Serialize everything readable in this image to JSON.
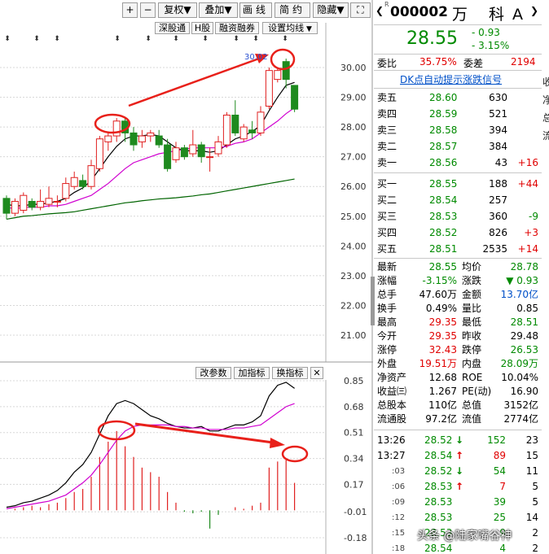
{
  "toolbar": {
    "add": "+",
    "subtract": "−",
    "restore_rights": "复权",
    "overlay": "叠加",
    "draw_line": "画线",
    "simple": "简约",
    "hide": "隐藏",
    "fullscreen": "⛶"
  },
  "chart_buttons": {
    "sz_link": "深股通",
    "h_share": "H股",
    "margin": "融资融券",
    "ma_settings": "设置均线",
    "change_params": "改参数",
    "add_indicator": "加指标",
    "switch_indicator": "换指标",
    "close": "✕"
  },
  "main_chart": {
    "peak_label": "30.02",
    "y_ticks": [
      "30.00",
      "29.00",
      "28.00",
      "27.00",
      "26.00",
      "25.00",
      "24.00",
      "23.00",
      "22.00",
      "21.00"
    ]
  },
  "indicator_chart": {
    "y_ticks": [
      "0.85",
      "0.68",
      "0.51",
      "0.34",
      "0.17",
      "-0.01",
      "-0.18"
    ]
  },
  "quote": {
    "code": "000002",
    "name": "万 科A",
    "r_mark": "R",
    "price": "28.55",
    "change": "- 0.93",
    "change_pct": "- 3.15%",
    "ratio_label": "委比",
    "ratio_value": "35.75%",
    "diff_label": "委差",
    "diff_value": "2194",
    "signal_link": "DK点自动提示涨跌信号"
  },
  "sell_orders": [
    {
      "label": "卖五",
      "price": "28.60",
      "volume": "630",
      "delta": ""
    },
    {
      "label": "卖四",
      "price": "28.59",
      "volume": "521",
      "delta": ""
    },
    {
      "label": "卖三",
      "price": "28.58",
      "volume": "394",
      "delta": ""
    },
    {
      "label": "卖二",
      "price": "28.57",
      "volume": "384",
      "delta": ""
    },
    {
      "label": "卖一",
      "price": "28.56",
      "volume": "43",
      "delta": "+16"
    }
  ],
  "buy_orders": [
    {
      "label": "买一",
      "price": "28.55",
      "volume": "188",
      "delta": "+44"
    },
    {
      "label": "买二",
      "price": "28.54",
      "volume": "257",
      "delta": ""
    },
    {
      "label": "买三",
      "price": "28.53",
      "volume": "360",
      "delta": "-9"
    },
    {
      "label": "买四",
      "price": "28.52",
      "volume": "826",
      "delta": "+3"
    },
    {
      "label": "买五",
      "price": "28.51",
      "volume": "2535",
      "delta": "+14"
    }
  ],
  "stats": [
    {
      "l1": "最新",
      "v1": "28.55",
      "l2": "均价",
      "v2": "28.78"
    },
    {
      "l1": "涨幅",
      "v1": "-3.15%",
      "l2": "涨跌",
      "v2": "▼ 0.93"
    },
    {
      "l1": "总手",
      "v1": "47.60万",
      "l2": "金额",
      "v2": "13.70亿"
    },
    {
      "l1": "换手",
      "v1": "0.49%",
      "l2": "量比",
      "v2": "0.85"
    },
    {
      "l1": "最高",
      "v1": "29.35",
      "l2": "最低",
      "v2": "28.51"
    },
    {
      "l1": "今开",
      "v1": "29.35",
      "l2": "昨收",
      "v2": "29.48"
    },
    {
      "l1": "涨停",
      "v1": "32.43",
      "l2": "跌停",
      "v2": "26.53"
    },
    {
      "l1": "外盘",
      "v1": "19.51万",
      "l2": "内盘",
      "v2": "28.09万"
    },
    {
      "l1": "净资产",
      "v1": "12.68",
      "l2": "ROE",
      "v2": "10.04%"
    },
    {
      "l1": "收益㈢",
      "v1": "1.267",
      "l2": "PE(动)",
      "v2": "16.90"
    },
    {
      "l1": "总股本",
      "v1": "110亿",
      "l2": "总值",
      "v2": "3152亿"
    },
    {
      "l1": "流通股",
      "v1": "97.2亿",
      "l2": "流值",
      "v2": "2774亿"
    }
  ],
  "ticks": [
    {
      "time": "13:26",
      "price": "28.52",
      "arrow": "↓",
      "vol": "152",
      "count": "23"
    },
    {
      "time": "13:27",
      "price": "28.54",
      "arrow": "↑",
      "vol": "89",
      "count": "15"
    },
    {
      "time": ":03",
      "price": "28.52",
      "arrow": "↓",
      "vol": "54",
      "count": "11"
    },
    {
      "time": ":06",
      "price": "28.53",
      "arrow": "↑",
      "vol": "7",
      "count": "5"
    },
    {
      "time": ":09",
      "price": "28.53",
      "arrow": "",
      "vol": "39",
      "count": "5"
    },
    {
      "time": ":12",
      "price": "28.53",
      "arrow": "",
      "vol": "25",
      "count": "14"
    },
    {
      "time": ":15",
      "price": "28.53",
      "arrow": "",
      "vol": "9",
      "count": "2"
    },
    {
      "time": ":18",
      "price": "28.54",
      "arrow": "",
      "vol": "4",
      "count": "2"
    }
  ],
  "edge_chars": [
    "收",
    "净",
    "总",
    "流",
    "",
    "",
    "",
    "",
    "",
    "",
    "",
    "",
    "",
    "",
    "",
    "",
    "",
    "",
    "",
    "",
    "",
    "",
    "",
    "",
    "",
    "",
    ""
  ],
  "watermark": "头条 @陆家嘴谷神",
  "chart_data": [
    {
      "type": "candlestick",
      "title": "",
      "ylim": [
        20.5,
        30.6
      ],
      "y_ticks": [
        21,
        22,
        23,
        24,
        25,
        26,
        27,
        28,
        29,
        30
      ],
      "grid": true,
      "candles": [
        {
          "open": 25.6,
          "close": 25.1,
          "high": 25.7,
          "low": 24.9
        },
        {
          "open": 25.1,
          "close": 25.5,
          "high": 25.6,
          "low": 25.0
        },
        {
          "open": 25.2,
          "close": 25.7,
          "high": 25.8,
          "low": 25.1
        },
        {
          "open": 25.5,
          "close": 25.3,
          "high": 25.6,
          "low": 25.2
        },
        {
          "open": 25.3,
          "close": 25.5,
          "high": 25.9,
          "low": 25.2
        },
        {
          "open": 25.4,
          "close": 25.6,
          "high": 26.0,
          "low": 25.3
        },
        {
          "open": 25.5,
          "close": 25.5,
          "high": 25.7,
          "low": 25.3
        },
        {
          "open": 25.6,
          "close": 26.1,
          "high": 26.3,
          "low": 25.5
        },
        {
          "open": 26.0,
          "close": 26.3,
          "high": 26.5,
          "low": 25.9
        },
        {
          "open": 26.2,
          "close": 26.0,
          "high": 26.4,
          "low": 25.9
        },
        {
          "open": 26.0,
          "close": 26.7,
          "high": 26.9,
          "low": 25.9
        },
        {
          "open": 26.6,
          "close": 27.6,
          "high": 27.7,
          "low": 26.5
        },
        {
          "open": 27.5,
          "close": 27.7,
          "high": 27.8,
          "low": 27.2
        },
        {
          "open": 27.7,
          "close": 28.2,
          "high": 28.3,
          "low": 27.5
        },
        {
          "open": 28.2,
          "close": 27.8,
          "high": 28.3,
          "low": 27.5
        },
        {
          "open": 27.8,
          "close": 27.4,
          "high": 28.0,
          "low": 27.2
        },
        {
          "open": 27.5,
          "close": 27.7,
          "high": 27.9,
          "low": 27.3
        },
        {
          "open": 27.7,
          "close": 27.8,
          "high": 27.9,
          "low": 27.5
        },
        {
          "open": 27.7,
          "close": 27.4,
          "high": 27.9,
          "low": 27.3
        },
        {
          "open": 27.4,
          "close": 26.6,
          "high": 27.6,
          "low": 26.5
        },
        {
          "open": 26.9,
          "close": 27.3,
          "high": 27.5,
          "low": 26.8
        },
        {
          "open": 27.3,
          "close": 27.0,
          "high": 27.4,
          "low": 26.9
        },
        {
          "open": 27.1,
          "close": 27.4,
          "high": 27.9,
          "low": 27.0
        },
        {
          "open": 27.4,
          "close": 27.0,
          "high": 27.5,
          "low": 26.8
        },
        {
          "open": 27.0,
          "close": 27.0,
          "high": 27.3,
          "low": 26.5
        },
        {
          "open": 27.1,
          "close": 27.5,
          "high": 27.7,
          "low": 27.0
        },
        {
          "open": 27.4,
          "close": 28.4,
          "high": 28.5,
          "low": 27.3
        },
        {
          "open": 28.4,
          "close": 27.8,
          "high": 28.9,
          "low": 27.7
        },
        {
          "open": 27.6,
          "close": 28.0,
          "high": 28.1,
          "low": 27.5
        },
        {
          "open": 27.9,
          "close": 27.8,
          "high": 28.2,
          "low": 27.6
        },
        {
          "open": 27.8,
          "close": 28.5,
          "high": 28.7,
          "low": 27.7
        },
        {
          "open": 28.7,
          "close": 29.9,
          "high": 30.0,
          "low": 28.6
        },
        {
          "open": 29.6,
          "close": 29.9,
          "high": 30.0,
          "low": 29.5
        },
        {
          "open": 30.2,
          "close": 29.6,
          "high": 30.3,
          "low": 29.3
        },
        {
          "open": 29.4,
          "close": 28.6,
          "high": 29.4,
          "low": 28.5
        }
      ],
      "series": [
        {
          "name": "",
          "color": "#000000",
          "values": [
            25.4,
            25.35,
            25.35,
            25.4,
            25.4,
            25.45,
            25.5,
            25.6,
            25.8,
            25.95,
            26.2,
            26.6,
            27.0,
            27.35,
            27.6,
            27.7,
            27.7,
            27.75,
            27.7,
            27.5,
            27.3,
            27.2,
            27.2,
            27.2,
            27.15,
            27.2,
            27.4,
            27.6,
            27.7,
            27.85,
            28.05,
            28.55,
            29.0,
            29.4,
            29.5
          ]
        },
        {
          "name": "",
          "color": "#d000d0",
          "values": [
            25.3,
            25.25,
            25.3,
            25.3,
            25.3,
            25.35,
            25.35,
            25.4,
            25.5,
            25.6,
            25.7,
            25.9,
            26.1,
            26.35,
            26.6,
            26.8,
            26.9,
            27.0,
            27.1,
            27.15,
            27.2,
            27.25,
            27.3,
            27.3,
            27.3,
            27.3,
            27.35,
            27.45,
            27.5,
            27.6,
            27.8,
            28.0,
            28.2,
            28.45,
            28.65
          ]
        },
        {
          "name": "",
          "color": "#006400",
          "values": [
            24.9,
            24.95,
            25.0,
            25.02,
            25.05,
            25.08,
            25.1,
            25.12,
            25.15,
            25.2,
            25.25,
            25.3,
            25.35,
            25.4,
            25.45,
            25.48,
            25.52,
            25.55,
            25.58,
            25.6,
            25.62,
            25.65,
            25.68,
            25.72,
            25.75,
            25.8,
            25.85,
            25.9,
            25.95,
            26.0,
            26.05,
            26.1,
            26.15,
            26.2,
            26.25
          ]
        }
      ]
    },
    {
      "type": "bar",
      "title": "",
      "ylim": [
        -0.2,
        0.88
      ],
      "y_ticks": [
        -0.18,
        -0.01,
        0.17,
        0.34,
        0.51,
        0.68,
        0.85
      ],
      "values": [
        0.0,
        0.01,
        0.02,
        0.03,
        0.02,
        0.04,
        0.05,
        0.08,
        0.12,
        0.14,
        0.22,
        0.35,
        0.45,
        0.52,
        0.42,
        0.35,
        0.28,
        0.25,
        0.22,
        0.12,
        0.05,
        -0.01,
        -0.02,
        -0.01,
        -0.12,
        -0.03,
        0.0,
        0.02,
        0.01,
        0.03,
        0.05,
        0.28,
        0.32,
        0.33,
        0.18
      ],
      "series": [
        {
          "name": "",
          "color": "#000000",
          "values": [
            0.02,
            0.03,
            0.05,
            0.06,
            0.08,
            0.1,
            0.13,
            0.18,
            0.25,
            0.3,
            0.38,
            0.5,
            0.62,
            0.7,
            0.72,
            0.7,
            0.66,
            0.62,
            0.6,
            0.57,
            0.55,
            0.54,
            0.54,
            0.55,
            0.52,
            0.52,
            0.54,
            0.56,
            0.56,
            0.58,
            0.62,
            0.75,
            0.82,
            0.84,
            0.8
          ]
        },
        {
          "name": "",
          "color": "#d000d0",
          "values": [
            0.01,
            0.02,
            0.03,
            0.04,
            0.05,
            0.06,
            0.08,
            0.1,
            0.14,
            0.18,
            0.23,
            0.3,
            0.38,
            0.46,
            0.52,
            0.55,
            0.56,
            0.56,
            0.56,
            0.56,
            0.55,
            0.55,
            0.54,
            0.54,
            0.53,
            0.53,
            0.53,
            0.54,
            0.54,
            0.55,
            0.56,
            0.6,
            0.64,
            0.68,
            0.7
          ]
        }
      ]
    }
  ]
}
